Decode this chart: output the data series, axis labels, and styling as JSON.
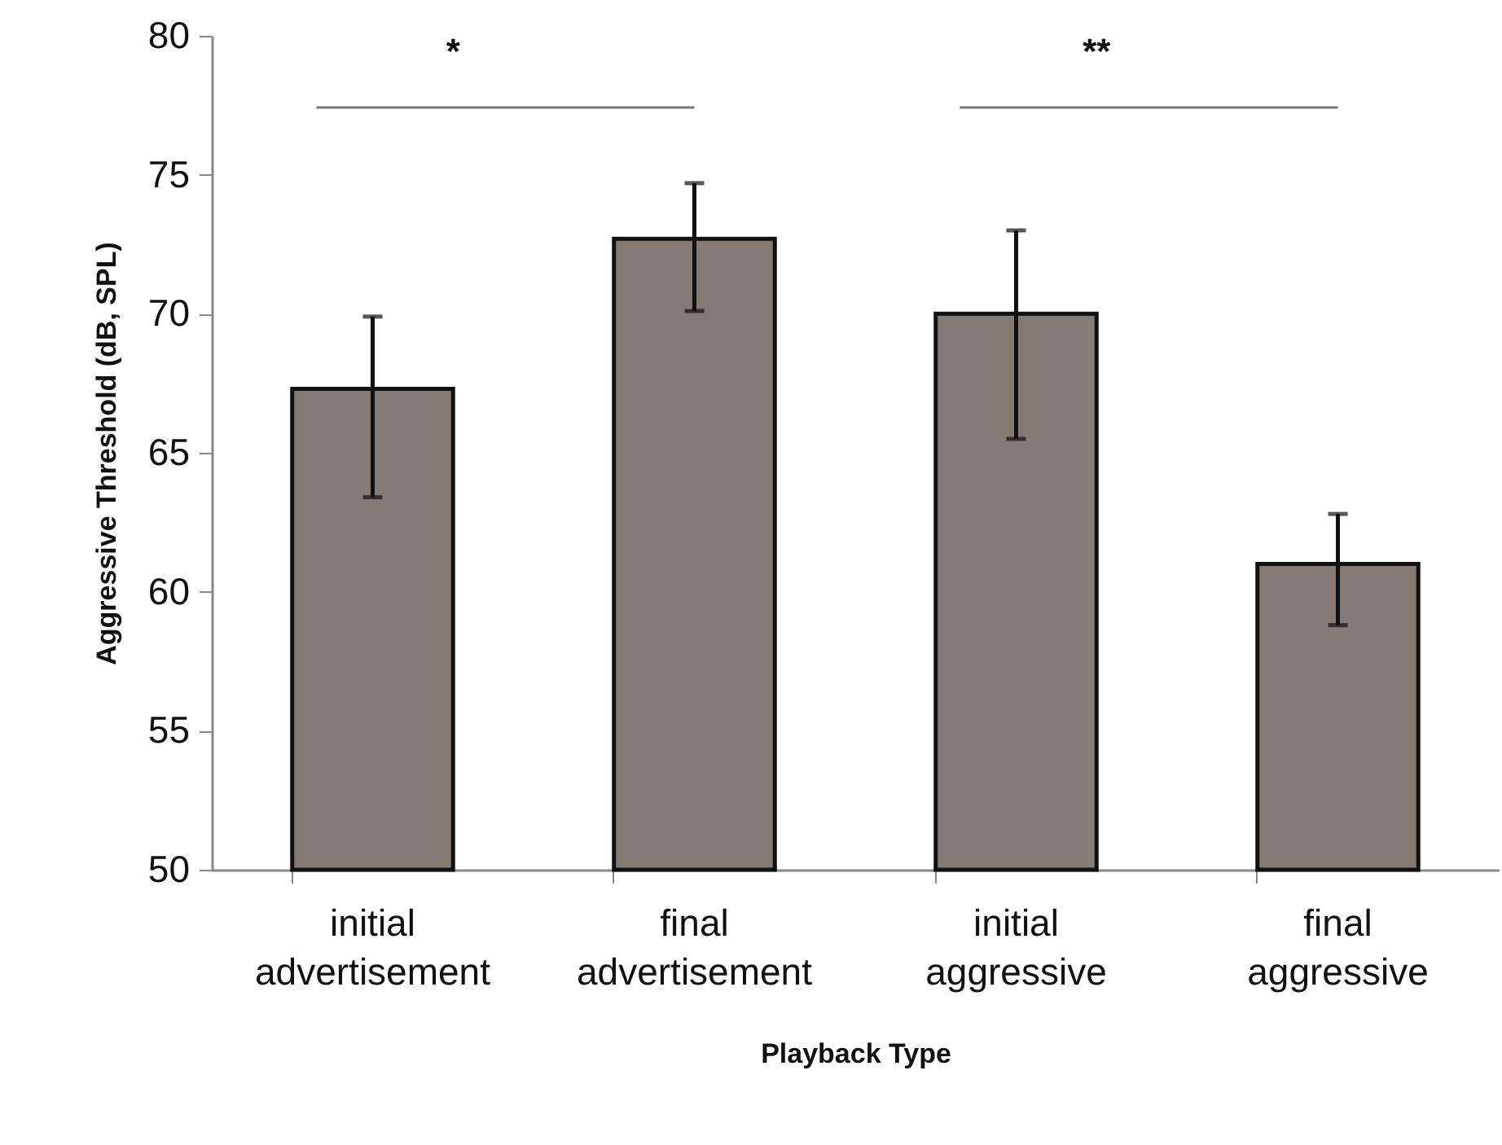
{
  "chart_data": {
    "type": "bar",
    "xlabel": "Playback Type",
    "ylabel": "Aggressive Threshold (dB, SPL)",
    "categories": [
      "initial advertisement",
      "final advertisement",
      "initial aggressive",
      "final aggressive"
    ],
    "values": [
      67.3,
      72.7,
      70.0,
      61.0
    ],
    "errors": [
      [
        63.4,
        69.9
      ],
      [
        70.1,
        74.7
      ],
      [
        65.5,
        73.0
      ],
      [
        58.8,
        62.8
      ]
    ],
    "color": "#847b75",
    "ylim": [
      50,
      80
    ],
    "yticks": [
      50,
      55,
      60,
      65,
      70,
      75,
      80
    ],
    "grid": false,
    "annotations": [
      "*",
      "**"
    ]
  }
}
